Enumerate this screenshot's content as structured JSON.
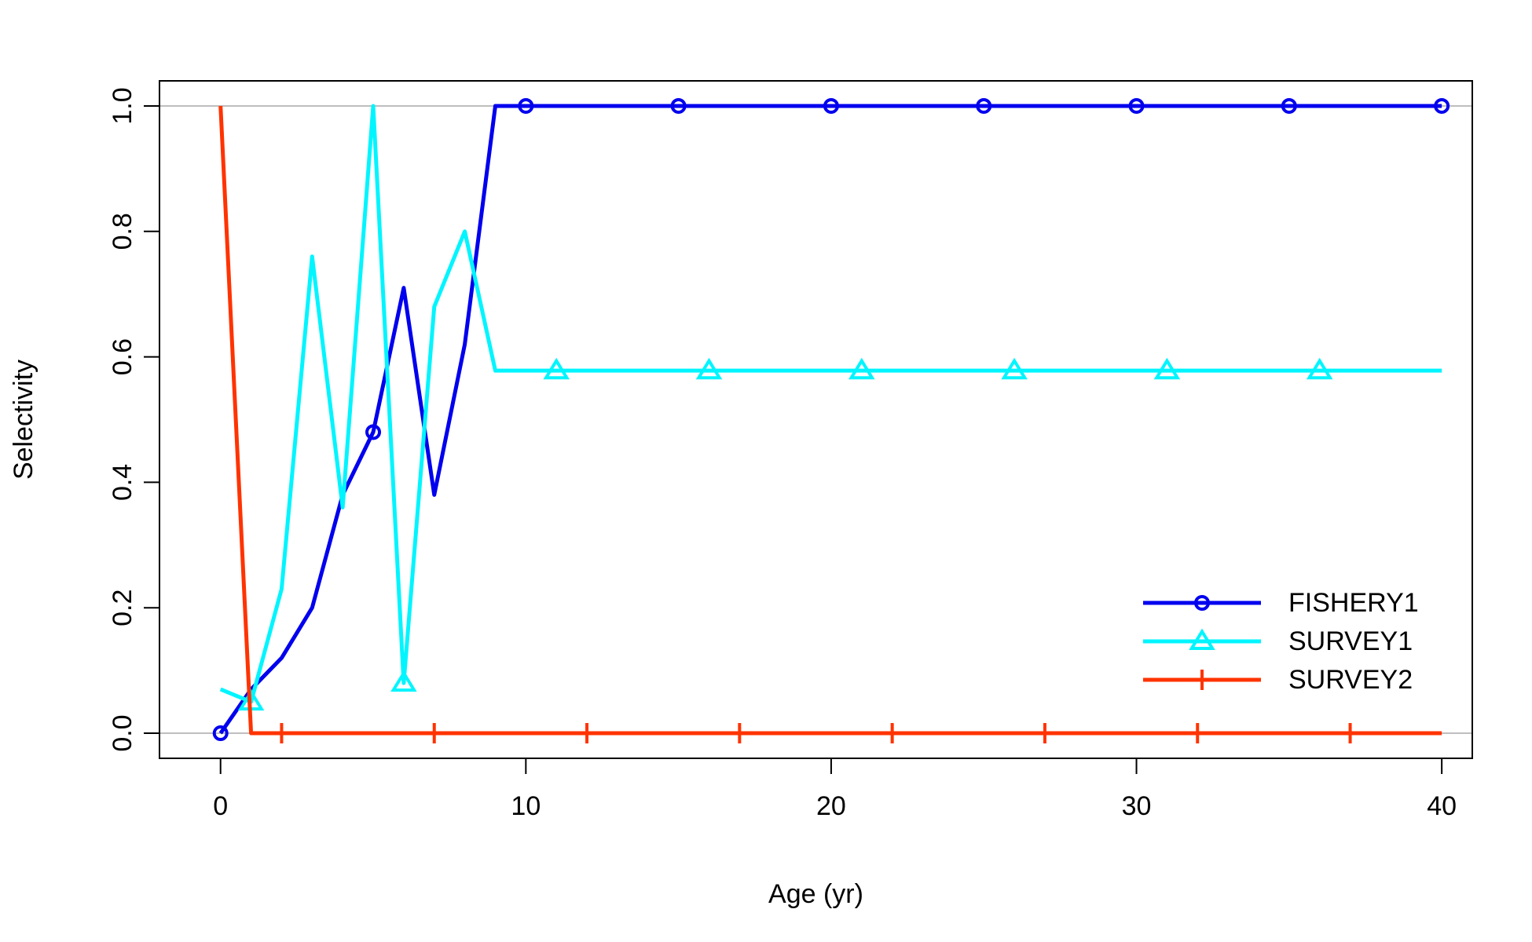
{
  "chart_data": {
    "type": "line",
    "title": "",
    "xlabel": "Age (yr)",
    "ylabel": "Selectivity",
    "xlim": [
      -2,
      41
    ],
    "ylim": [
      -0.04,
      1.04
    ],
    "x_ticks": [
      0,
      10,
      20,
      30,
      40
    ],
    "y_ticks": [
      0.0,
      0.2,
      0.4,
      0.6,
      0.8,
      1.0
    ],
    "x_tick_labels": [
      "0",
      "10",
      "20",
      "30",
      "40"
    ],
    "y_tick_labels": [
      "0.0",
      "0.2",
      "0.4",
      "0.6",
      "0.8",
      "1.0"
    ],
    "reference_lines": [
      0,
      1
    ],
    "reference_line_color": "#BEBEBE",
    "legend_position": "bottom-right",
    "series": [
      {
        "name": "FISHERY1",
        "color": "#0000EE",
        "marker": "circle",
        "marker_x": [
          0,
          5,
          10,
          15,
          20,
          25,
          30,
          35,
          40
        ],
        "x": [
          0,
          1,
          2,
          3,
          4,
          5,
          6,
          7,
          8,
          9,
          10,
          11,
          12,
          13,
          14,
          15,
          16,
          17,
          18,
          19,
          20,
          21,
          22,
          23,
          24,
          25,
          26,
          27,
          28,
          29,
          30,
          31,
          32,
          33,
          34,
          35,
          36,
          37,
          38,
          39,
          40
        ],
        "y": [
          0.0,
          0.07,
          0.12,
          0.2,
          0.38,
          0.48,
          0.71,
          0.38,
          0.62,
          1.0,
          1.0,
          1.0,
          1.0,
          1.0,
          1.0,
          1.0,
          1.0,
          1.0,
          1.0,
          1.0,
          1.0,
          1.0,
          1.0,
          1.0,
          1.0,
          1.0,
          1.0,
          1.0,
          1.0,
          1.0,
          1.0,
          1.0,
          1.0,
          1.0,
          1.0,
          1.0,
          1.0,
          1.0,
          1.0,
          1.0,
          1.0
        ]
      },
      {
        "name": "SURVEY1",
        "color": "#00F5FF",
        "marker": "triangle",
        "marker_x": [
          1,
          6,
          11,
          16,
          21,
          26,
          31,
          36
        ],
        "x": [
          0,
          1,
          2,
          3,
          4,
          5,
          6,
          7,
          8,
          9,
          10,
          11,
          12,
          13,
          14,
          15,
          16,
          17,
          18,
          19,
          20,
          21,
          22,
          23,
          24,
          25,
          26,
          27,
          28,
          29,
          30,
          31,
          32,
          33,
          34,
          35,
          36,
          37,
          38,
          39,
          40
        ],
        "y": [
          0.07,
          0.05,
          0.23,
          0.76,
          0.36,
          1.0,
          0.08,
          0.68,
          0.8,
          0.578,
          0.578,
          0.578,
          0.578,
          0.578,
          0.578,
          0.578,
          0.578,
          0.578,
          0.578,
          0.578,
          0.578,
          0.578,
          0.578,
          0.578,
          0.578,
          0.578,
          0.578,
          0.578,
          0.578,
          0.578,
          0.578,
          0.578,
          0.578,
          0.578,
          0.578,
          0.578,
          0.578,
          0.578,
          0.578,
          0.578,
          0.578
        ]
      },
      {
        "name": "SURVEY2",
        "color": "#FF3300",
        "marker": "vertical-tick",
        "marker_x": [
          2,
          7,
          12,
          17,
          22,
          27,
          32,
          37
        ],
        "x": [
          0,
          1,
          2,
          3,
          4,
          5,
          6,
          7,
          8,
          9,
          10,
          11,
          12,
          13,
          14,
          15,
          16,
          17,
          18,
          19,
          20,
          21,
          22,
          23,
          24,
          25,
          26,
          27,
          28,
          29,
          30,
          31,
          32,
          33,
          34,
          35,
          36,
          37,
          38,
          39,
          40
        ],
        "y": [
          1.0,
          0.0,
          0.0,
          0.0,
          0.0,
          0.0,
          0.0,
          0.0,
          0.0,
          0.0,
          0.0,
          0.0,
          0.0,
          0.0,
          0.0,
          0.0,
          0.0,
          0.0,
          0.0,
          0.0,
          0.0,
          0.0,
          0.0,
          0.0,
          0.0,
          0.0,
          0.0,
          0.0,
          0.0,
          0.0,
          0.0,
          0.0,
          0.0,
          0.0,
          0.0,
          0.0,
          0.0,
          0.0,
          0.0,
          0.0,
          0.0
        ]
      }
    ]
  }
}
